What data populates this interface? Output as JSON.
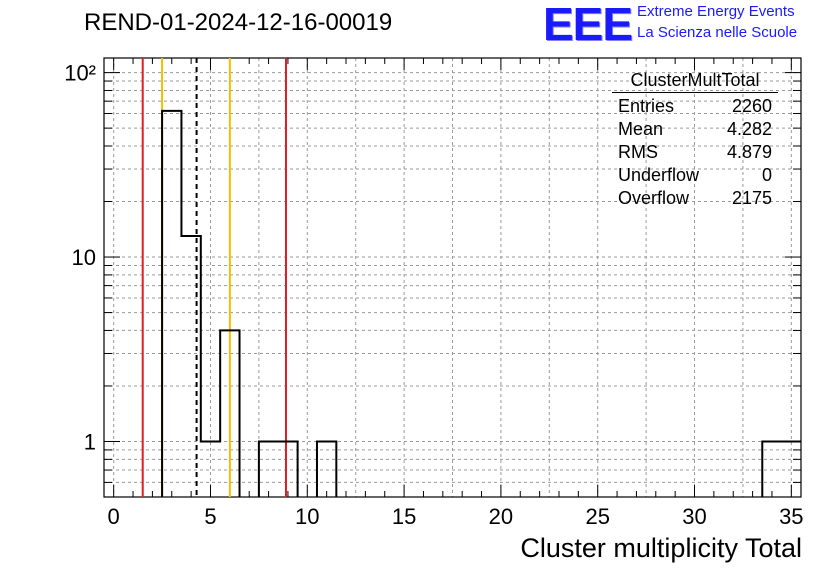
{
  "chart_title": "REND-01-2024-12-16-00019",
  "logo": {
    "text": "EEE",
    "line1": "Extreme Energy Events",
    "line2": "La Scienza nelle Scuole"
  },
  "stats": {
    "name": "ClusterMultTotal",
    "rows": [
      {
        "label": "Entries",
        "value": "2260"
      },
      {
        "label": "Mean",
        "value": "4.282"
      },
      {
        "label": "RMS",
        "value": "4.879"
      },
      {
        "label": "Underflow",
        "value": "0"
      },
      {
        "label": "Overflow",
        "value": "2175"
      }
    ]
  },
  "chart_data": {
    "type": "histogram",
    "xlabel": "Cluster multiplicity Total",
    "ylabel": "",
    "xlim": [
      -0.5,
      35.5
    ],
    "ylim": [
      0.5,
      120
    ],
    "y_scale": "log",
    "grid": true,
    "x_ticks": [
      "0",
      "5",
      "10",
      "15",
      "20",
      "25",
      "30",
      "35"
    ],
    "y_ticks": [
      {
        "value": 1,
        "label": "1"
      },
      {
        "value": 10,
        "label": "10"
      },
      {
        "value": 100,
        "label": "10²"
      }
    ],
    "bins": [
      {
        "x0": 2.5,
        "x1": 3.5,
        "count": 62
      },
      {
        "x0": 3.5,
        "x1": 4.5,
        "count": 13
      },
      {
        "x0": 4.5,
        "x1": 5.5,
        "count": 1
      },
      {
        "x0": 5.5,
        "x1": 6.5,
        "count": 4
      },
      {
        "x0": 7.5,
        "x1": 8.5,
        "count": 1
      },
      {
        "x0": 8.5,
        "x1": 9.5,
        "count": 1
      },
      {
        "x0": 10.5,
        "x1": 11.5,
        "count": 1
      },
      {
        "x0": 33.5,
        "x1": 34.5,
        "count": 1
      },
      {
        "x0": 34.5,
        "x1": 35.5,
        "count": 1
      }
    ],
    "vertical_lines": [
      {
        "x": 1.5,
        "color": "#e02020",
        "style": "solid"
      },
      {
        "x": 2.5,
        "color": "#f0c000",
        "style": "solid"
      },
      {
        "x": 4.282,
        "color": "#000000",
        "style": "dashed"
      },
      {
        "x": 6.0,
        "color": "#f0c000",
        "style": "solid"
      },
      {
        "x": 8.9,
        "color": "#e02020",
        "style": "solid"
      }
    ]
  }
}
